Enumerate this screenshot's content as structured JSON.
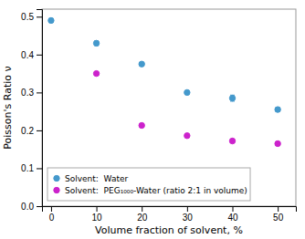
{
  "chart_data": {
    "type": "scatter",
    "x_label": "Volume fraction of solvent, %",
    "y_label": "Poisson's Ratio ν",
    "xlim": [
      -2,
      54
    ],
    "ylim": [
      0,
      0.52
    ],
    "xticks": [
      0,
      10,
      20,
      30,
      40,
      50
    ],
    "yticks": [
      {
        "value": 0.0,
        "label": "0.0"
      },
      {
        "value": 0.1,
        "label": "0.1"
      },
      {
        "value": 0.2,
        "label": "0.2"
      },
      {
        "value": 0.3,
        "label": "0.3"
      },
      {
        "value": 0.4,
        "label": "0.4"
      },
      {
        "value": 0.5,
        "label": "0.5"
      }
    ],
    "grid": false,
    "legend": "lower left",
    "series": [
      {
        "name": "Solvent:  Water",
        "color": "#4499cc",
        "marker": "circle",
        "x": [
          0,
          10,
          20,
          30,
          40,
          50
        ],
        "values": [
          0.49,
          0.43,
          0.375,
          0.3,
          0.285,
          0.255
        ],
        "errors": [
          0.005,
          0.006,
          0.004,
          0.004,
          0.008,
          0.005
        ]
      },
      {
        "name": "Solvent:  PEG₁₀₀₀-Water (ratio 2:1 in volume)",
        "color": "#cc22cc",
        "marker": "circle",
        "x": [
          10,
          20,
          30,
          40,
          50
        ],
        "values": [
          0.35,
          0.213,
          0.186,
          0.172,
          0.165
        ],
        "errors": [
          0.003,
          0.003,
          0.003,
          0.003,
          0.003
        ]
      }
    ]
  }
}
